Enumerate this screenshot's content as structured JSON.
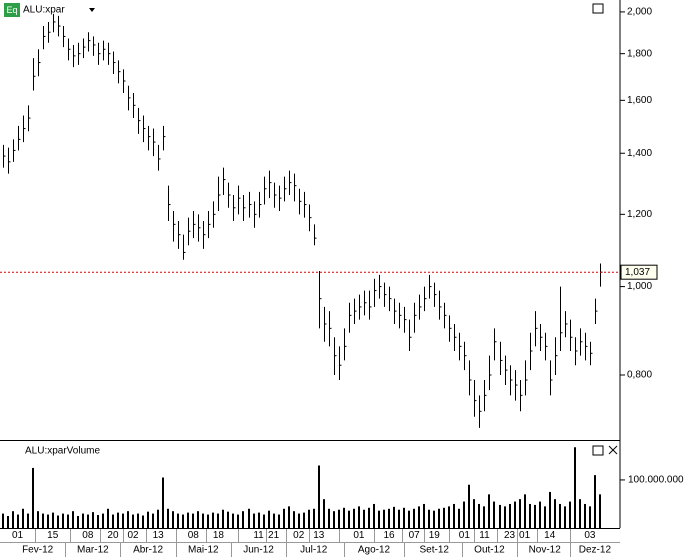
{
  "chart_data": [
    {
      "type": "ohlc",
      "title": "ALU:xpar",
      "badge": "Eq",
      "color": "#000000",
      "log_scale": true,
      "ylim": [
        679,
        2061
      ],
      "yticks": [
        {
          "value": 800,
          "label": "0,800"
        },
        {
          "value": 1000,
          "label": "1,000"
        },
        {
          "value": 1200,
          "label": "1,200"
        },
        {
          "value": 1400,
          "label": "1,400"
        },
        {
          "value": 1600,
          "label": "1,600"
        },
        {
          "value": 1800,
          "label": "1,800"
        },
        {
          "value": 2000,
          "label": "2,000"
        }
      ],
      "last_price": {
        "value": 1037,
        "label": "1,037"
      },
      "last_price_color": "#dd0000",
      "xlim": [
        -0.5,
        123
      ],
      "xticks": [
        {
          "value": 3,
          "label": "01"
        },
        {
          "value": 10,
          "label": "15"
        },
        {
          "value": 17,
          "label": "08"
        },
        {
          "value": 22,
          "label": "20"
        },
        {
          "value": 26,
          "label": "02"
        },
        {
          "value": 31,
          "label": "13"
        },
        {
          "value": 38,
          "label": "08"
        },
        {
          "value": 43,
          "label": "18"
        },
        {
          "value": 51,
          "label": "11"
        },
        {
          "value": 54,
          "label": "21"
        },
        {
          "value": 59,
          "label": "02"
        },
        {
          "value": 63,
          "label": "13"
        },
        {
          "value": 71,
          "label": "01"
        },
        {
          "value": 77,
          "label": "16"
        },
        {
          "value": 82,
          "label": "07"
        },
        {
          "value": 86,
          "label": "19"
        },
        {
          "value": 92,
          "label": "01"
        },
        {
          "value": 96,
          "label": "11"
        },
        {
          "value": 101,
          "label": "23"
        },
        {
          "value": 104,
          "label": "01"
        },
        {
          "value": 109,
          "label": "14"
        },
        {
          "value": 117,
          "label": "03"
        }
      ],
      "month_ticks": [
        {
          "value": 7,
          "label": "Fev-12"
        },
        {
          "value": 18,
          "label": "Mar-12"
        },
        {
          "value": 29,
          "label": "Abr-12"
        },
        {
          "value": 40,
          "label": "Mai-12"
        },
        {
          "value": 51,
          "label": "Jun-12"
        },
        {
          "value": 62,
          "label": "Jul-12"
        },
        {
          "value": 74,
          "label": "Ago-12"
        },
        {
          "value": 86,
          "label": "Set-12"
        },
        {
          "value": 97,
          "label": "Out-12"
        },
        {
          "value": 108,
          "label": "Nov-12"
        },
        {
          "value": 118,
          "label": "Dez-12"
        }
      ],
      "high": [
        1430,
        1420,
        1450,
        1500,
        1540,
        1580,
        1780,
        1820,
        1930,
        1950,
        1990,
        1980,
        1930,
        1870,
        1840,
        1850,
        1870,
        1900,
        1880,
        1850,
        1860,
        1850,
        1810,
        1770,
        1730,
        1660,
        1630,
        1570,
        1540,
        1500,
        1490,
        1430,
        1500,
        1290,
        1210,
        1180,
        1140,
        1190,
        1210,
        1200,
        1180,
        1210,
        1240,
        1320,
        1350,
        1300,
        1260,
        1290,
        1260,
        1270,
        1240,
        1270,
        1320,
        1340,
        1300,
        1290,
        1320,
        1340,
        1330,
        1280,
        1270,
        1230,
        1170,
        1040,
        950,
        940,
        880,
        860,
        900,
        960,
        970,
        980,
        990,
        990,
        1020,
        1030,
        1010,
        1000,
        970,
        960,
        950,
        920,
        960,
        980,
        1000,
        1030,
        1010,
        990,
        960,
        930,
        910,
        890,
        870,
        830,
        790,
        760,
        790,
        840,
        900,
        870,
        840,
        820,
        810,
        790,
        830,
        890,
        940,
        910,
        890,
        830,
        880,
        1000,
        940,
        920,
        880,
        900,
        890,
        870,
        970,
        1060
      ],
      "low": [
        1350,
        1330,
        1370,
        1410,
        1440,
        1480,
        1640,
        1700,
        1820,
        1850,
        1900,
        1880,
        1830,
        1770,
        1740,
        1750,
        1780,
        1810,
        1790,
        1750,
        1770,
        1750,
        1710,
        1670,
        1630,
        1560,
        1530,
        1470,
        1440,
        1410,
        1390,
        1340,
        1410,
        1180,
        1120,
        1100,
        1070,
        1110,
        1130,
        1120,
        1100,
        1130,
        1160,
        1210,
        1260,
        1220,
        1180,
        1200,
        1180,
        1190,
        1160,
        1190,
        1230,
        1250,
        1220,
        1210,
        1240,
        1260,
        1240,
        1200,
        1190,
        1150,
        1110,
        900,
        870,
        860,
        800,
        790,
        830,
        890,
        910,
        920,
        930,
        920,
        950,
        970,
        950,
        940,
        910,
        900,
        890,
        850,
        890,
        920,
        940,
        970,
        950,
        920,
        900,
        870,
        850,
        830,
        810,
        760,
        720,
        700,
        730,
        770,
        830,
        800,
        780,
        760,
        750,
        730,
        760,
        810,
        860,
        850,
        830,
        760,
        800,
        850,
        880,
        850,
        820,
        840,
        830,
        820,
        910,
        1000
      ],
      "close": [
        1390,
        1370,
        1410,
        1450,
        1490,
        1530,
        1700,
        1760,
        1880,
        1900,
        1950,
        1930,
        1880,
        1820,
        1790,
        1800,
        1830,
        1860,
        1840,
        1800,
        1820,
        1800,
        1760,
        1720,
        1680,
        1610,
        1580,
        1520,
        1490,
        1460,
        1440,
        1380,
        1460,
        1230,
        1170,
        1140,
        1090,
        1150,
        1170,
        1160,
        1140,
        1170,
        1200,
        1260,
        1310,
        1260,
        1220,
        1250,
        1220,
        1230,
        1200,
        1230,
        1280,
        1300,
        1260,
        1250,
        1280,
        1300,
        1290,
        1240,
        1230,
        1190,
        1130,
        970,
        910,
        900,
        840,
        820,
        860,
        930,
        940,
        950,
        960,
        950,
        990,
        1000,
        980,
        970,
        940,
        930,
        920,
        880,
        930,
        950,
        970,
        1000,
        980,
        950,
        930,
        900,
        880,
        860,
        840,
        790,
        750,
        730,
        760,
        800,
        870,
        830,
        810,
        790,
        780,
        760,
        790,
        850,
        900,
        880,
        860,
        790,
        840,
        890,
        910,
        880,
        850,
        870,
        860,
        845,
        940,
        1037
      ]
    },
    {
      "type": "bar",
      "title": "ALU:xparVolume",
      "color": "#000000",
      "ylim": [
        0,
        181000000
      ],
      "yticks": [
        {
          "value": 100000000,
          "label": "100.000.000"
        }
      ],
      "values": [
        30000000,
        25000000,
        35000000,
        28000000,
        40000000,
        30000000,
        125000000,
        35000000,
        30000000,
        28000000,
        32000000,
        26000000,
        30000000,
        28000000,
        35000000,
        25000000,
        30000000,
        28000000,
        33000000,
        27000000,
        30000000,
        40000000,
        28000000,
        32000000,
        30000000,
        35000000,
        28000000,
        30000000,
        26000000,
        34000000,
        30000000,
        38000000,
        105000000,
        40000000,
        35000000,
        30000000,
        28000000,
        32000000,
        30000000,
        35000000,
        30000000,
        28000000,
        32000000,
        30000000,
        38000000,
        34000000,
        30000000,
        28000000,
        35000000,
        40000000,
        30000000,
        32000000,
        28000000,
        36000000,
        30000000,
        28000000,
        40000000,
        45000000,
        35000000,
        30000000,
        32000000,
        38000000,
        40000000,
        130000000,
        60000000,
        40000000,
        35000000,
        38000000,
        42000000,
        36000000,
        40000000,
        45000000,
        38000000,
        42000000,
        50000000,
        36000000,
        38000000,
        40000000,
        44000000,
        38000000,
        42000000,
        36000000,
        40000000,
        45000000,
        50000000,
        38000000,
        36000000,
        40000000,
        42000000,
        45000000,
        50000000,
        40000000,
        55000000,
        90000000,
        60000000,
        50000000,
        45000000,
        70000000,
        55000000,
        48000000,
        45000000,
        50000000,
        55000000,
        60000000,
        70000000,
        50000000,
        48000000,
        55000000,
        45000000,
        75000000,
        60000000,
        50000000,
        45000000,
        55000000,
        168000000,
        60000000,
        50000000,
        45000000,
        110000000,
        70000000
      ]
    }
  ]
}
